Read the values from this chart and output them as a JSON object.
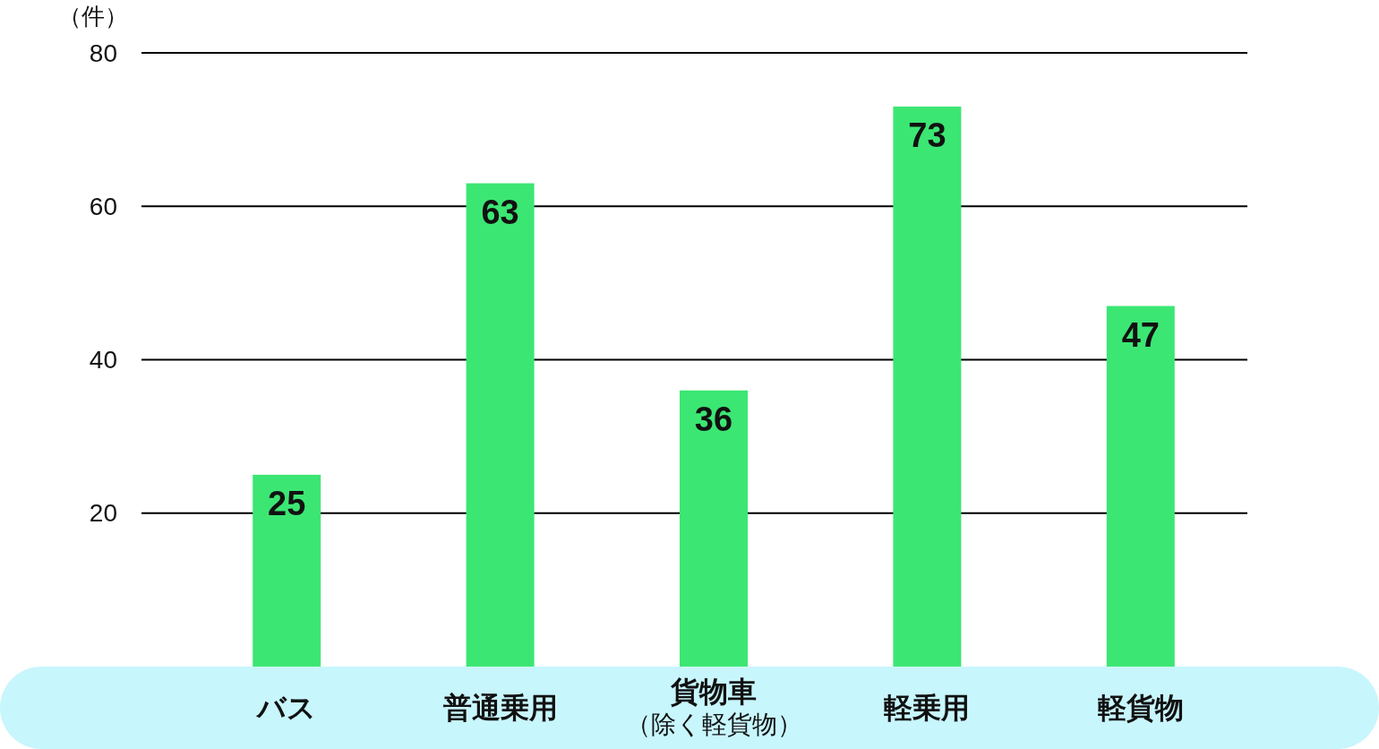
{
  "chart_data": {
    "type": "bar",
    "ylabel": "（件）",
    "categories": [
      "バス",
      "普通乗用",
      "貨物車（除く軽貨物）",
      "軽乗用",
      "軽貨物"
    ],
    "values": [
      25,
      63,
      36,
      73,
      47
    ],
    "color": "#3ce673",
    "ylim": [
      0,
      80
    ],
    "yticks": [
      20,
      40,
      60,
      80
    ],
    "grid": "y",
    "data_labels": true
  }
}
